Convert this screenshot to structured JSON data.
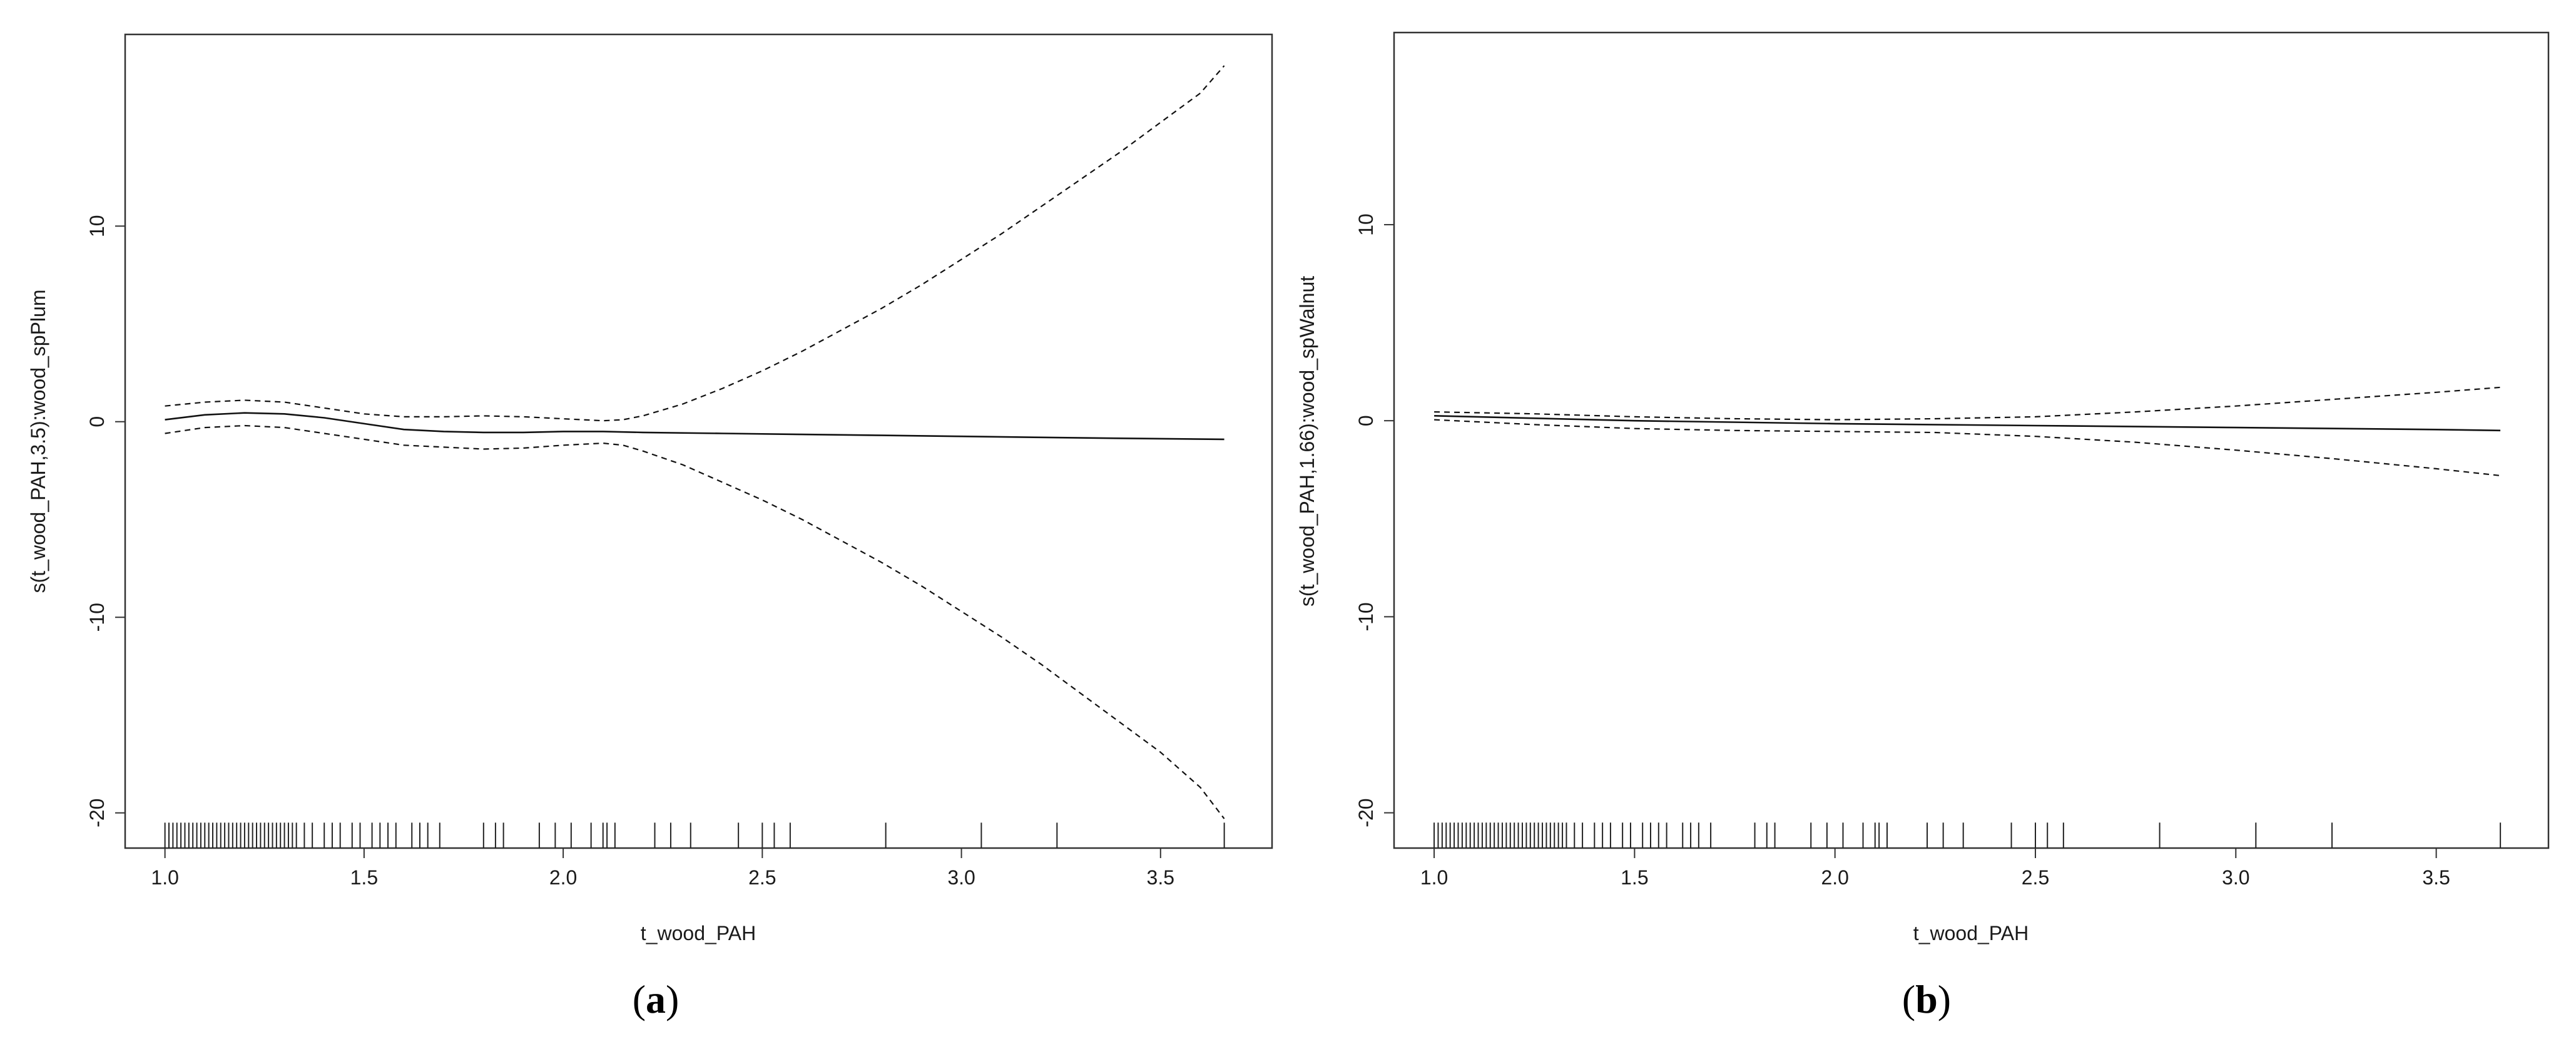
{
  "chart_data": [
    {
      "type": "line",
      "panel_label": "a",
      "xlabel": "t_wood_PAH",
      "ylabel": "s(t_wood_PAH,3.5):wood_spPlum",
      "xlim": [
        0.9,
        3.78
      ],
      "ylim": [
        -21.8,
        19.8
      ],
      "xticks": [
        1.0,
        1.5,
        2.0,
        2.5,
        3.0,
        3.5
      ],
      "xtick_labels": [
        "1.0",
        "1.5",
        "2.0",
        "2.5",
        "3.0",
        "3.5"
      ],
      "yticks": [
        -20,
        -10,
        0,
        10
      ],
      "ytick_labels": [
        "-20",
        "-10",
        "0",
        "10"
      ],
      "grid": false,
      "series": [
        {
          "role": "estimate",
          "style": "solid",
          "x": [
            1.0,
            1.1,
            1.2,
            1.3,
            1.4,
            1.5,
            1.6,
            1.7,
            1.8,
            1.9,
            2.0,
            2.1,
            2.2,
            2.4,
            2.6,
            2.8,
            3.0,
            3.2,
            3.4,
            3.66
          ],
          "y": [
            0.1,
            0.35,
            0.45,
            0.4,
            0.2,
            -0.1,
            -0.4,
            -0.5,
            -0.55,
            -0.55,
            -0.5,
            -0.5,
            -0.55,
            -0.6,
            -0.65,
            -0.7,
            -0.75,
            -0.8,
            -0.85,
            -0.9
          ]
        },
        {
          "role": "upper",
          "style": "dashed",
          "x": [
            1.0,
            1.1,
            1.2,
            1.3,
            1.4,
            1.5,
            1.6,
            1.7,
            1.8,
            1.9,
            2.0,
            2.1,
            2.15,
            2.2,
            2.3,
            2.4,
            2.5,
            2.6,
            2.7,
            2.8,
            2.9,
            3.0,
            3.1,
            3.2,
            3.3,
            3.4,
            3.5,
            3.6,
            3.66
          ],
          "y": [
            0.8,
            1.0,
            1.1,
            1.0,
            0.7,
            0.4,
            0.25,
            0.25,
            0.3,
            0.25,
            0.15,
            0.05,
            0.1,
            0.3,
            0.9,
            1.7,
            2.6,
            3.6,
            4.7,
            5.8,
            7.0,
            8.3,
            9.6,
            11.0,
            12.4,
            13.8,
            15.3,
            16.8,
            18.2
          ]
        },
        {
          "role": "lower",
          "style": "dashed",
          "x": [
            1.0,
            1.1,
            1.2,
            1.3,
            1.4,
            1.5,
            1.6,
            1.7,
            1.8,
            1.9,
            2.0,
            2.1,
            2.15,
            2.2,
            2.3,
            2.4,
            2.5,
            2.6,
            2.7,
            2.8,
            2.9,
            3.0,
            3.1,
            3.2,
            3.3,
            3.4,
            3.5,
            3.6,
            3.66
          ],
          "y": [
            -0.6,
            -0.3,
            -0.2,
            -0.3,
            -0.6,
            -0.9,
            -1.2,
            -1.3,
            -1.4,
            -1.35,
            -1.2,
            -1.1,
            -1.2,
            -1.5,
            -2.2,
            -3.1,
            -4.0,
            -5.0,
            -6.1,
            -7.2,
            -8.4,
            -9.7,
            -11.0,
            -12.4,
            -13.9,
            -15.4,
            -16.9,
            -18.7,
            -20.3
          ]
        }
      ],
      "rug": [
        1.0,
        1.01,
        1.02,
        1.03,
        1.04,
        1.05,
        1.06,
        1.07,
        1.08,
        1.09,
        1.1,
        1.11,
        1.12,
        1.13,
        1.14,
        1.15,
        1.16,
        1.17,
        1.18,
        1.19,
        1.2,
        1.21,
        1.22,
        1.23,
        1.24,
        1.25,
        1.26,
        1.27,
        1.28,
        1.29,
        1.3,
        1.31,
        1.32,
        1.33,
        1.35,
        1.37,
        1.4,
        1.42,
        1.44,
        1.47,
        1.49,
        1.52,
        1.54,
        1.56,
        1.58,
        1.62,
        1.64,
        1.66,
        1.69,
        1.8,
        1.83,
        1.85,
        1.94,
        1.98,
        2.02,
        2.07,
        2.1,
        2.11,
        2.13,
        2.23,
        2.27,
        2.32,
        2.44,
        2.5,
        2.53,
        2.57,
        2.81,
        3.05,
        3.24,
        3.66
      ]
    },
    {
      "type": "line",
      "panel_label": "b",
      "xlabel": "t_wood_PAH",
      "ylabel": "s(t_wood_PAH,1.66):wood_spWalnut",
      "xlim": [
        0.9,
        3.78
      ],
      "ylim": [
        -21.8,
        19.8
      ],
      "xticks": [
        1.0,
        1.5,
        2.0,
        2.5,
        3.0,
        3.5
      ],
      "xtick_labels": [
        "1.0",
        "1.5",
        "2.0",
        "2.5",
        "3.0",
        "3.5"
      ],
      "yticks": [
        -20,
        -10,
        0,
        10
      ],
      "ytick_labels": [
        "-20",
        "-10",
        "0",
        "10"
      ],
      "grid": false,
      "series": [
        {
          "role": "estimate",
          "style": "solid",
          "x": [
            1.0,
            1.5,
            2.0,
            2.5,
            3.0,
            3.5,
            3.66
          ],
          "y": [
            0.25,
            0.0,
            -0.15,
            -0.25,
            -0.35,
            -0.45,
            -0.5
          ]
        },
        {
          "role": "upper",
          "style": "dashed",
          "x": [
            1.0,
            1.25,
            1.5,
            1.75,
            2.0,
            2.25,
            2.5,
            2.75,
            3.0,
            3.25,
            3.5,
            3.66
          ],
          "y": [
            0.45,
            0.35,
            0.2,
            0.1,
            0.05,
            0.1,
            0.2,
            0.45,
            0.75,
            1.1,
            1.45,
            1.7
          ]
        },
        {
          "role": "lower",
          "style": "dashed",
          "x": [
            1.0,
            1.25,
            1.5,
            1.75,
            2.0,
            2.25,
            2.5,
            2.75,
            3.0,
            3.25,
            3.5,
            3.66
          ],
          "y": [
            0.05,
            -0.2,
            -0.4,
            -0.5,
            -0.55,
            -0.6,
            -0.8,
            -1.1,
            -1.5,
            -1.95,
            -2.45,
            -2.8
          ]
        }
      ],
      "rug": [
        1.0,
        1.01,
        1.02,
        1.03,
        1.04,
        1.05,
        1.06,
        1.07,
        1.08,
        1.09,
        1.1,
        1.11,
        1.12,
        1.13,
        1.14,
        1.15,
        1.16,
        1.17,
        1.18,
        1.19,
        1.2,
        1.21,
        1.22,
        1.23,
        1.24,
        1.25,
        1.26,
        1.27,
        1.28,
        1.29,
        1.3,
        1.31,
        1.32,
        1.33,
        1.35,
        1.37,
        1.4,
        1.42,
        1.44,
        1.47,
        1.49,
        1.52,
        1.54,
        1.56,
        1.58,
        1.62,
        1.64,
        1.66,
        1.69,
        1.8,
        1.83,
        1.85,
        1.94,
        1.98,
        2.02,
        2.07,
        2.1,
        2.11,
        2.13,
        2.23,
        2.27,
        2.32,
        2.44,
        2.5,
        2.53,
        2.57,
        2.81,
        3.05,
        3.24,
        3.66
      ]
    }
  ],
  "panel_captions": [
    {
      "open": "(",
      "letter": "a",
      "close": ")"
    },
    {
      "open": "(",
      "letter": "b",
      "close": ")"
    }
  ]
}
